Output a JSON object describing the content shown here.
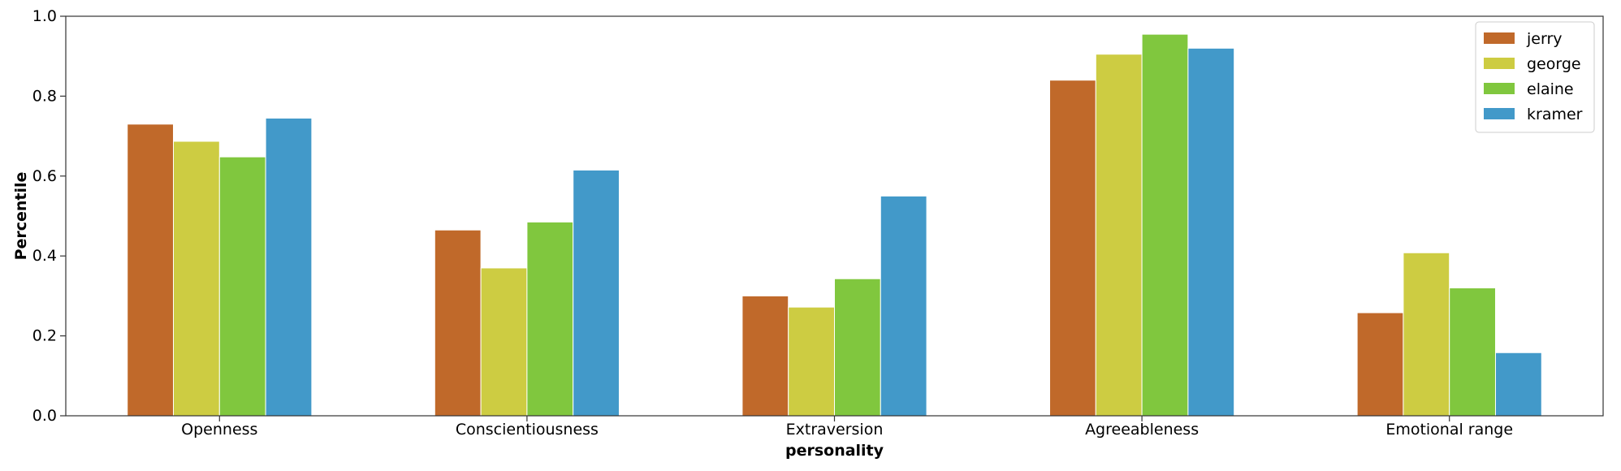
{
  "chart_data": {
    "type": "bar",
    "title": "",
    "xlabel": "personality",
    "ylabel": "Percentile",
    "ylim": [
      0,
      1.0
    ],
    "yticks": [
      "0.0",
      "0.2",
      "0.4",
      "0.6",
      "0.8",
      "1.0"
    ],
    "grid": false,
    "legend_position": "top-right",
    "categories": [
      "Openness",
      "Conscientiousness",
      "Extraversion",
      "Agreeableness",
      "Emotional range"
    ],
    "series": [
      {
        "name": "jerry",
        "color": "#c0692a",
        "values": [
          0.73,
          0.465,
          0.3,
          0.84,
          0.258
        ]
      },
      {
        "name": "george",
        "color": "#cdcc42",
        "values": [
          0.687,
          0.37,
          0.272,
          0.905,
          0.408
        ]
      },
      {
        "name": "elaine",
        "color": "#80c73e",
        "values": [
          0.648,
          0.485,
          0.343,
          0.955,
          0.32
        ]
      },
      {
        "name": "kramer",
        "color": "#4299c9",
        "values": [
          0.745,
          0.615,
          0.55,
          0.92,
          0.158
        ]
      }
    ]
  }
}
